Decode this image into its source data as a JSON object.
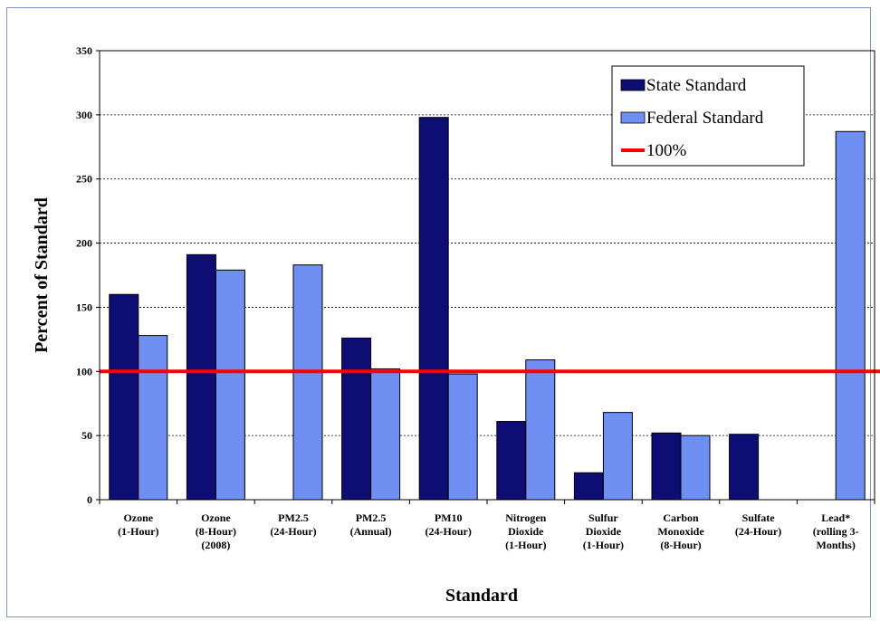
{
  "chart_data": {
    "type": "bar",
    "title": "",
    "xlabel": "Standard",
    "ylabel": "Percent of Standard",
    "ylim": [
      0,
      350
    ],
    "yticks": [
      "0",
      "50",
      "100",
      "150",
      "200",
      "250",
      "300",
      "350"
    ],
    "grid": true,
    "legend_position": "top-right",
    "categories": [
      [
        "Ozone",
        "(1-Hour)"
      ],
      [
        "Ozone",
        "(8-Hour)",
        "(2008)"
      ],
      [
        "PM2.5",
        "(24-Hour)"
      ],
      [
        "PM2.5",
        "(Annual)"
      ],
      [
        "PM10",
        "(24-Hour)"
      ],
      [
        "Nitrogen",
        "Dioxide",
        "(1-Hour)"
      ],
      [
        "Sulfur",
        "Dioxide",
        "(1-Hour)"
      ],
      [
        "Carbon",
        "Monoxide",
        "(8-Hour)"
      ],
      [
        "Sulfate",
        "(24-Hour)"
      ],
      [
        "Lead*",
        "(rolling 3-",
        "Months)"
      ]
    ],
    "series": [
      {
        "name": "State Standard",
        "color": "#0d0d73",
        "values": [
          160,
          191,
          null,
          126,
          298,
          61,
          21,
          52,
          51,
          null
        ]
      },
      {
        "name": "Federal Standard",
        "color": "#6f8ff2",
        "values": [
          128,
          179,
          183,
          102,
          98,
          109,
          68,
          50,
          null,
          287
        ]
      }
    ],
    "reference_line": {
      "name": "100%",
      "value": 100,
      "color": "#ff0000"
    }
  }
}
